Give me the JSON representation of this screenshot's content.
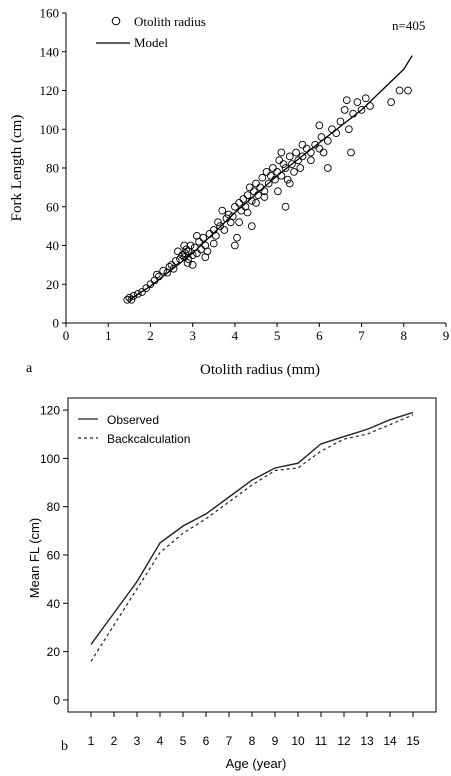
{
  "chart_data": [
    {
      "type": "scatter",
      "panel_label": "a",
      "xlabel": "Otolith radius (mm)",
      "ylabel": "Fork Length (cm)",
      "xlim": [
        0,
        9
      ],
      "ylim": [
        0,
        160
      ],
      "x_ticks": [
        "0",
        "1",
        "2",
        "3",
        "4",
        "5",
        "6",
        "7",
        "8",
        "9"
      ],
      "y_ticks": [
        "0",
        "20",
        "40",
        "60",
        "80",
        "100",
        "120",
        "140",
        "160"
      ],
      "grid": false,
      "legend_position": "top-left",
      "legend": [
        {
          "label": "Otolith radius",
          "marker": "open-circle"
        },
        {
          "label": "Model",
          "marker": "line"
        }
      ],
      "annotation": "n=405",
      "series": [
        {
          "name": "Otolith radius",
          "mode": "markers",
          "points": [
            [
              1.45,
              12
            ],
            [
              1.5,
              13
            ],
            [
              1.55,
              12
            ],
            [
              1.6,
              14
            ],
            [
              1.7,
              15
            ],
            [
              1.8,
              16
            ],
            [
              1.9,
              18
            ],
            [
              2.0,
              20
            ],
            [
              2.1,
              22
            ],
            [
              2.15,
              25
            ],
            [
              2.2,
              24
            ],
            [
              2.3,
              27
            ],
            [
              2.4,
              26
            ],
            [
              2.45,
              29
            ],
            [
              2.5,
              30
            ],
            [
              2.55,
              28
            ],
            [
              2.6,
              32
            ],
            [
              2.7,
              33
            ],
            [
              2.75,
              35
            ],
            [
              2.8,
              34
            ],
            [
              2.82,
              36
            ],
            [
              2.85,
              38
            ],
            [
              2.88,
              31
            ],
            [
              2.9,
              37
            ],
            [
              2.95,
              40
            ],
            [
              3.0,
              35
            ],
            [
              3.05,
              39
            ],
            [
              3.1,
              36
            ],
            [
              3.15,
              42
            ],
            [
              3.2,
              38
            ],
            [
              3.25,
              44
            ],
            [
              3.3,
              40
            ],
            [
              3.35,
              37
            ],
            [
              3.4,
              46
            ],
            [
              3.5,
              48
            ],
            [
              3.55,
              45
            ],
            [
              3.6,
              52
            ],
            [
              3.65,
              50
            ],
            [
              3.7,
              58
            ],
            [
              3.75,
              48
            ],
            [
              3.8,
              54
            ],
            [
              3.85,
              56
            ],
            [
              3.9,
              52
            ],
            [
              3.95,
              55
            ],
            [
              4.0,
              60
            ],
            [
              4.05,
              44
            ],
            [
              4.1,
              62
            ],
            [
              4.15,
              58
            ],
            [
              4.2,
              64
            ],
            [
              4.25,
              60
            ],
            [
              4.3,
              66
            ],
            [
              4.35,
              70
            ],
            [
              4.4,
              63
            ],
            [
              4.45,
              68
            ],
            [
              4.5,
              72
            ],
            [
              4.55,
              66
            ],
            [
              4.6,
              70
            ],
            [
              4.65,
              75
            ],
            [
              4.7,
              68
            ],
            [
              4.75,
              78
            ],
            [
              4.8,
              72
            ],
            [
              4.85,
              76
            ],
            [
              4.9,
              80
            ],
            [
              4.95,
              74
            ],
            [
              5.0,
              78
            ],
            [
              5.02,
              68
            ],
            [
              5.05,
              84
            ],
            [
              5.1,
              76
            ],
            [
              5.15,
              82
            ],
            [
              5.2,
              80
            ],
            [
              5.25,
              74
            ],
            [
              5.3,
              86
            ],
            [
              5.35,
              82
            ],
            [
              5.4,
              78
            ],
            [
              5.45,
              88
            ],
            [
              5.5,
              84
            ],
            [
              5.55,
              80
            ],
            [
              5.6,
              86
            ],
            [
              5.7,
              90
            ],
            [
              5.8,
              88
            ],
            [
              5.9,
              92
            ],
            [
              6.0,
              90
            ],
            [
              6.05,
              96
            ],
            [
              6.1,
              88
            ],
            [
              6.2,
              94
            ],
            [
              6.3,
              100
            ],
            [
              6.4,
              98
            ],
            [
              6.5,
              104
            ],
            [
              6.6,
              110
            ],
            [
              6.65,
              115
            ],
            [
              6.7,
              100
            ],
            [
              6.75,
              88
            ],
            [
              6.8,
              108
            ],
            [
              6.9,
              114
            ],
            [
              7.0,
              110
            ],
            [
              7.1,
              116
            ],
            [
              7.2,
              112
            ],
            [
              7.7,
              114
            ],
            [
              7.9,
              120
            ],
            [
              8.1,
              120
            ],
            [
              2.8,
              40
            ],
            [
              2.9,
              33
            ],
            [
              3.0,
              30
            ],
            [
              2.65,
              37
            ],
            [
              3.1,
              45
            ],
            [
              3.3,
              34
            ],
            [
              3.5,
              41
            ],
            [
              4.0,
              40
            ],
            [
              4.1,
              52
            ],
            [
              4.3,
              57
            ],
            [
              4.5,
              62
            ],
            [
              4.7,
              65
            ],
            [
              5.1,
              88
            ],
            [
              5.3,
              72
            ],
            [
              5.2,
              60
            ],
            [
              5.6,
              92
            ],
            [
              5.8,
              84
            ],
            [
              6.0,
              102
            ],
            [
              6.2,
              80
            ],
            [
              4.4,
              50
            ]
          ]
        },
        {
          "name": "Model",
          "mode": "line",
          "points": [
            [
              1.5,
              12
            ],
            [
              2,
              19
            ],
            [
              3,
              36
            ],
            [
              4,
              57
            ],
            [
              5,
              76
            ],
            [
              6,
              93
            ],
            [
              7,
              110
            ],
            [
              8,
              131
            ],
            [
              8.2,
              138
            ]
          ]
        }
      ]
    },
    {
      "type": "line",
      "panel_label": "b",
      "xlabel": "Age (year)",
      "ylabel": "Mean FL (cm)",
      "xlim": [
        0,
        16
      ],
      "ylim": [
        -5,
        125
      ],
      "categories": [
        1,
        2,
        3,
        4,
        5,
        6,
        7,
        8,
        9,
        10,
        11,
        12,
        13,
        14,
        15
      ],
      "x_ticks": [
        "1",
        "2",
        "3",
        "4",
        "5",
        "6",
        "7",
        "8",
        "9",
        "10",
        "11",
        "12",
        "13",
        "14",
        "15"
      ],
      "y_ticks": [
        "0",
        "20",
        "40",
        "60",
        "80",
        "100",
        "120"
      ],
      "grid": false,
      "legend_position": "top-left",
      "series": [
        {
          "name": "Observed",
          "style": "solid",
          "values": [
            23,
            36,
            49,
            65,
            72,
            77,
            84,
            91,
            96,
            98,
            106,
            109,
            112,
            116,
            119
          ]
        },
        {
          "name": "Backcalculation",
          "style": "dashed",
          "values": [
            16,
            31,
            46,
            61,
            69,
            75,
            82,
            89,
            95,
            96,
            103,
            108,
            110,
            114,
            118
          ]
        }
      ]
    }
  ]
}
